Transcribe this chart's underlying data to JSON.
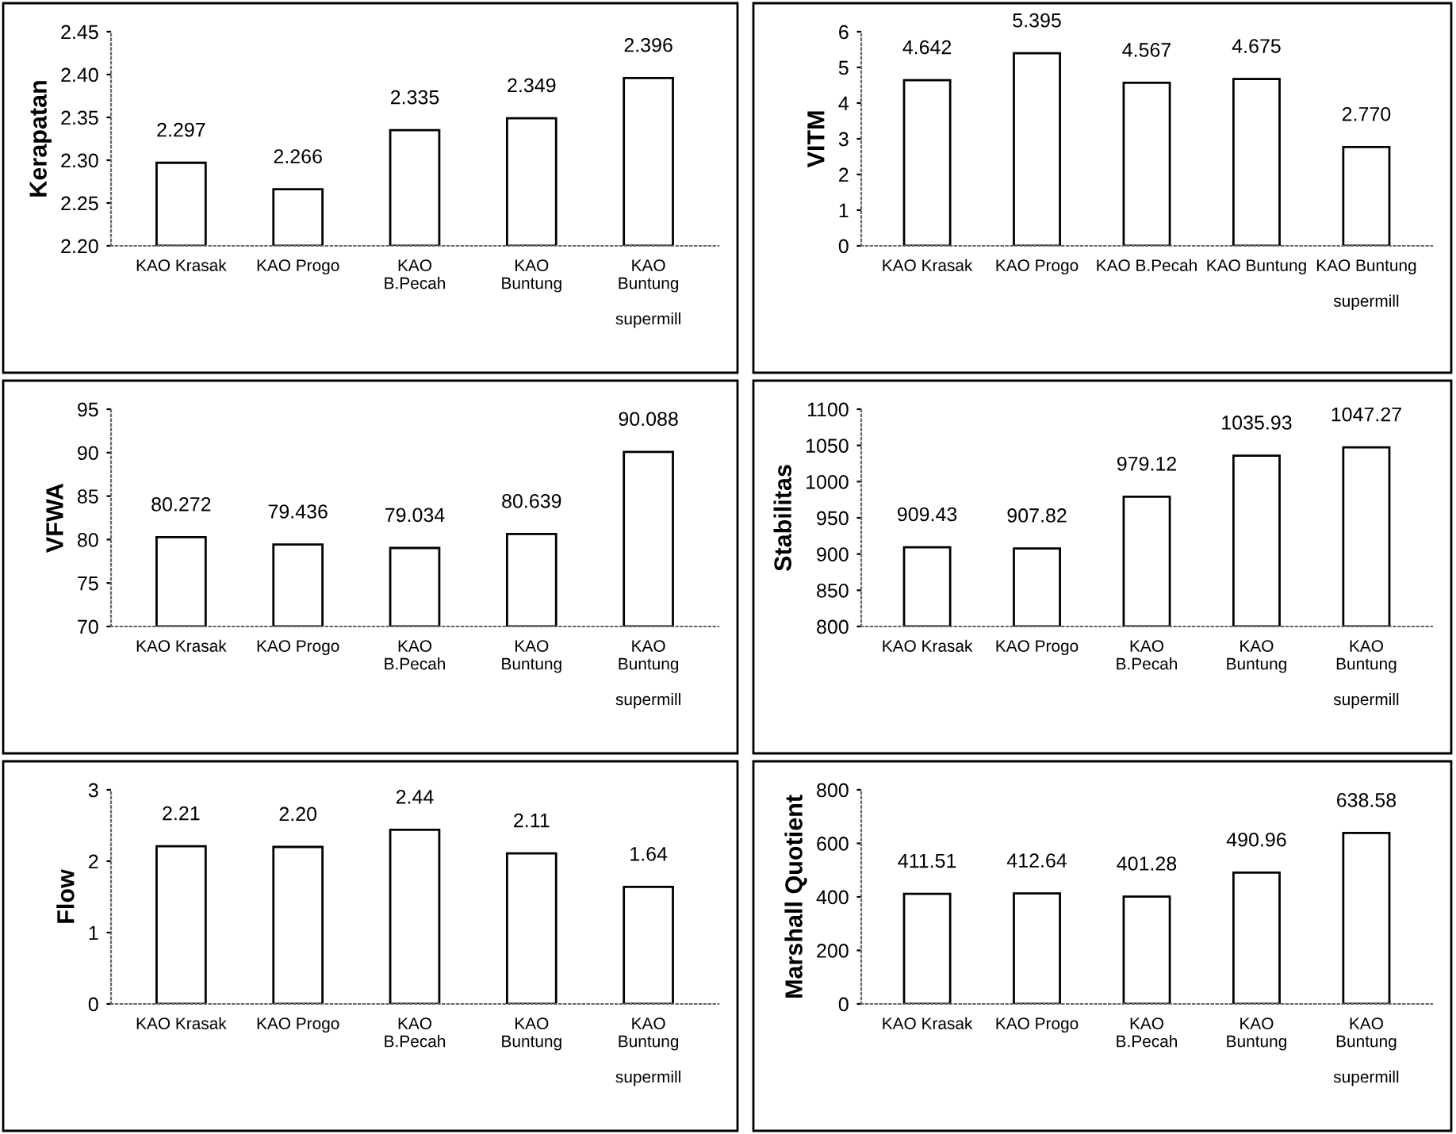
{
  "chart_data": [
    {
      "type": "bar",
      "ylabel": "Kerapatan",
      "categories": [
        "KAO Krasak",
        "KAO Progo",
        "KAO\nB.Pecah",
        "KAO\nBuntung",
        "KAO\nBuntung\n\nsupermill"
      ],
      "values": [
        2.297,
        2.266,
        2.335,
        2.349,
        2.396
      ],
      "value_labels": [
        "2.297",
        "2.266",
        "2.335",
        "2.349",
        "2.396"
      ],
      "color": "#ffffff",
      "ylim": [
        2.2,
        2.45
      ],
      "yticks": [
        {
          "value": 2.2,
          "label": "2.20"
        },
        {
          "value": 2.25,
          "label": "2.25"
        },
        {
          "value": 2.3,
          "label": "2.30"
        },
        {
          "value": 2.35,
          "label": "2.35"
        },
        {
          "value": 2.4,
          "label": "2.40"
        },
        {
          "value": 2.45,
          "label": "2.45"
        }
      ]
    },
    {
      "type": "bar",
      "ylabel": "VITM",
      "categories": [
        "KAO Krasak",
        "KAO Progo",
        "KAO B.Pecah",
        "KAO Buntung",
        "KAO Buntung\n\nsupermill"
      ],
      "values": [
        4.642,
        5.395,
        4.567,
        4.675,
        2.77
      ],
      "value_labels": [
        "4.642",
        "5.395",
        "4.567",
        "4.675",
        "2.770"
      ],
      "color": "#ffffff",
      "ylim": [
        0,
        6
      ],
      "yticks": [
        0,
        1,
        2,
        3,
        4,
        5,
        6
      ]
    },
    {
      "type": "bar",
      "ylabel": "VFWA",
      "categories": [
        "KAO Krasak",
        "KAO Progo",
        "KAO\nB.Pecah",
        "KAO\nBuntung",
        "KAO\nBuntung\n\nsupermill"
      ],
      "values": [
        80.272,
        79.436,
        79.034,
        80.639,
        90.088
      ],
      "value_labels": [
        "80.272",
        "79.436",
        "79.034",
        "80.639",
        "90.088"
      ],
      "color": "#ffffff",
      "ylim": [
        70,
        95
      ],
      "yticks": [
        70,
        75,
        80,
        85,
        90,
        95
      ]
    },
    {
      "type": "bar",
      "ylabel": "Stabilitas",
      "categories": [
        "KAO Krasak",
        "KAO Progo",
        "KAO\nB.Pecah",
        "KAO\nBuntung",
        "KAO\nBuntung\n\nsupermill"
      ],
      "values": [
        909.43,
        907.82,
        979.12,
        1035.93,
        1047.27
      ],
      "value_labels": [
        "909.43",
        "907.82",
        "979.12",
        "1035.93",
        "1047.27"
      ],
      "color": "#ffffff",
      "ylim": [
        800,
        1100
      ],
      "yticks": [
        800,
        850,
        900,
        950,
        1000,
        1050,
        1100
      ]
    },
    {
      "type": "bar",
      "ylabel": "Flow",
      "categories": [
        "KAO Krasak",
        "KAO Progo",
        "KAO\nB.Pecah",
        "KAO\nBuntung",
        "KAO\nBuntung\n\nsupermill"
      ],
      "values": [
        2.21,
        2.2,
        2.44,
        2.11,
        1.64
      ],
      "value_labels": [
        "2.21",
        "2.20",
        "2.44",
        "2.11",
        "1.64"
      ],
      "color": "#ffffff",
      "ylim": [
        0,
        3
      ],
      "yticks": [
        0,
        1,
        2,
        3
      ]
    },
    {
      "type": "bar",
      "ylabel": "Marshall Quotient",
      "categories": [
        "KAO Krasak",
        "KAO Progo",
        "KAO\nB.Pecah",
        "KAO\nBuntung",
        "KAO\nBuntung\n\nsupermill"
      ],
      "values": [
        411.51,
        412.64,
        401.28,
        490.96,
        638.58
      ],
      "value_labels": [
        "411.51",
        "412.64",
        "401.28",
        "490.96",
        "638.58"
      ],
      "color": "#ffffff",
      "ylim": [
        0,
        800
      ],
      "yticks": [
        0,
        200,
        400,
        600,
        800
      ]
    }
  ]
}
